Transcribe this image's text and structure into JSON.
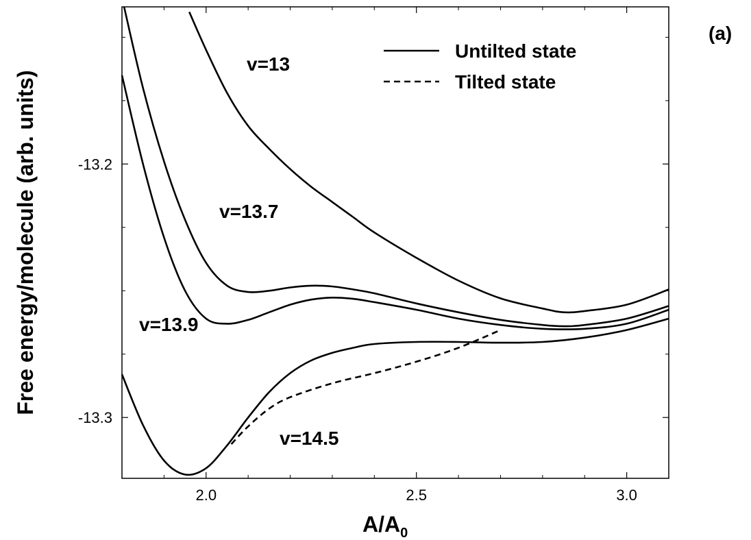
{
  "panel_label": "(a)",
  "chart_data": {
    "type": "line",
    "xlabel_main": "A/A",
    "xlabel_sub": "0",
    "ylabel": "Free energy/molecule (arb. units)",
    "xlim": [
      1.8,
      3.1
    ],
    "ylim": [
      -13.324,
      -13.138
    ],
    "x_ticks": [
      2.0,
      2.5,
      3.0
    ],
    "x_tick_labels": [
      "2.0",
      "2.5",
      "3.0"
    ],
    "x_minor_ticks": [
      1.9,
      2.1,
      2.2,
      2.3,
      2.4,
      2.6,
      2.7,
      2.8,
      2.9,
      3.1
    ],
    "y_ticks": [
      -13.2,
      -13.3
    ],
    "y_tick_labels": [
      "-13.2",
      "-13.3"
    ],
    "y_minor_ticks": [
      -13.15,
      -13.175,
      -13.225,
      -13.25,
      -13.275,
      -13.325
    ],
    "grid": false,
    "legend": {
      "placement": "top-right",
      "entries": [
        {
          "label": "Untilted state",
          "style": "solid"
        },
        {
          "label": "Tilted state",
          "style": "dashed"
        }
      ]
    },
    "series": [
      {
        "label": "v=13",
        "style": "solid",
        "points": [
          [
            1.96,
            -13.14
          ],
          [
            2.0,
            -13.155
          ],
          [
            2.05,
            -13.172
          ],
          [
            2.1,
            -13.185
          ],
          [
            2.15,
            -13.194
          ],
          [
            2.2,
            -13.202
          ],
          [
            2.25,
            -13.209
          ],
          [
            2.3,
            -13.215
          ],
          [
            2.35,
            -13.221
          ],
          [
            2.4,
            -13.227
          ],
          [
            2.5,
            -13.237
          ],
          [
            2.6,
            -13.246
          ],
          [
            2.7,
            -13.253
          ],
          [
            2.8,
            -13.257
          ],
          [
            2.85,
            -13.2585
          ],
          [
            2.9,
            -13.258
          ],
          [
            3.0,
            -13.2555
          ],
          [
            3.1,
            -13.2495
          ]
        ]
      },
      {
        "label": "v=13.7",
        "style": "solid",
        "points": [
          [
            1.805,
            -13.138
          ],
          [
            1.85,
            -13.17
          ],
          [
            1.9,
            -13.199
          ],
          [
            1.95,
            -13.222
          ],
          [
            2.0,
            -13.239
          ],
          [
            2.05,
            -13.248
          ],
          [
            2.1,
            -13.2505
          ],
          [
            2.15,
            -13.25
          ],
          [
            2.2,
            -13.2487
          ],
          [
            2.25,
            -13.248
          ],
          [
            2.3,
            -13.2483
          ],
          [
            2.35,
            -13.2495
          ],
          [
            2.4,
            -13.251
          ],
          [
            2.5,
            -13.255
          ],
          [
            2.6,
            -13.2585
          ],
          [
            2.7,
            -13.2615
          ],
          [
            2.8,
            -13.2635
          ],
          [
            2.85,
            -13.264
          ],
          [
            2.9,
            -13.2635
          ],
          [
            3.0,
            -13.261
          ],
          [
            3.1,
            -13.256
          ]
        ]
      },
      {
        "label": "v=13.9",
        "style": "solid",
        "points": [
          [
            1.8,
            -13.165
          ],
          [
            1.85,
            -13.2
          ],
          [
            1.9,
            -13.229
          ],
          [
            1.95,
            -13.25
          ],
          [
            2.0,
            -13.261
          ],
          [
            2.05,
            -13.263
          ],
          [
            2.1,
            -13.2615
          ],
          [
            2.15,
            -13.2585
          ],
          [
            2.2,
            -13.2555
          ],
          [
            2.25,
            -13.2535
          ],
          [
            2.3,
            -13.2527
          ],
          [
            2.35,
            -13.2532
          ],
          [
            2.4,
            -13.2545
          ],
          [
            2.5,
            -13.2575
          ],
          [
            2.6,
            -13.261
          ],
          [
            2.7,
            -13.2635
          ],
          [
            2.8,
            -13.265
          ],
          [
            2.9,
            -13.265
          ],
          [
            3.0,
            -13.263
          ],
          [
            3.1,
            -13.2575
          ]
        ]
      },
      {
        "label": "v=14.5",
        "style": "solid",
        "points": [
          [
            1.8,
            -13.283
          ],
          [
            1.85,
            -13.303
          ],
          [
            1.9,
            -13.317
          ],
          [
            1.95,
            -13.3225
          ],
          [
            2.0,
            -13.32
          ],
          [
            2.05,
            -13.311
          ],
          [
            2.1,
            -13.3
          ],
          [
            2.15,
            -13.29
          ],
          [
            2.2,
            -13.2825
          ],
          [
            2.25,
            -13.2775
          ],
          [
            2.3,
            -13.2745
          ],
          [
            2.35,
            -13.2725
          ],
          [
            2.4,
            -13.271
          ],
          [
            2.5,
            -13.2702
          ],
          [
            2.6,
            -13.2702
          ],
          [
            2.7,
            -13.2705
          ],
          [
            2.8,
            -13.2702
          ],
          [
            2.9,
            -13.2685
          ],
          [
            3.0,
            -13.2655
          ],
          [
            3.1,
            -13.261
          ]
        ]
      },
      {
        "label": "Tilted state",
        "style": "dashed",
        "points": [
          [
            2.06,
            -13.3105
          ],
          [
            2.1,
            -13.3035
          ],
          [
            2.15,
            -13.2965
          ],
          [
            2.2,
            -13.292
          ],
          [
            2.3,
            -13.2865
          ],
          [
            2.4,
            -13.2825
          ],
          [
            2.5,
            -13.278
          ],
          [
            2.6,
            -13.2725
          ],
          [
            2.7,
            -13.2655
          ]
        ]
      }
    ]
  }
}
